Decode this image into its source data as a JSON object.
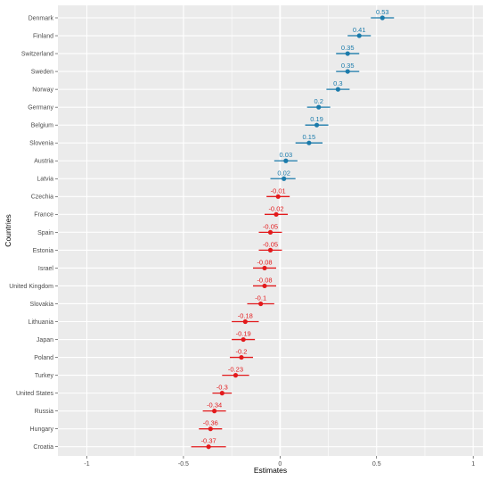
{
  "chart_data": {
    "type": "scatter",
    "xlabel": "Estimates",
    "ylabel": "Countries",
    "xlim": [
      -1.15,
      1.05
    ],
    "x_ticks": [
      -1,
      -0.5,
      0,
      0.5,
      1
    ],
    "x_tick_labels": [
      "-1",
      "-0.5",
      "0",
      "0.5",
      "1"
    ],
    "reference_line_x": 0,
    "grid": true,
    "legend": "none",
    "colors": {
      "positive": "#1b7bab",
      "negative": "#e31a1c",
      "panel": "#ebebeb",
      "grid": "#ffffff"
    },
    "points": [
      {
        "country": "Denmark",
        "estimate": 0.53,
        "label": "0.53",
        "ci": [
          0.47,
          0.59
        ]
      },
      {
        "country": "Finland",
        "estimate": 0.41,
        "label": "0.41",
        "ci": [
          0.35,
          0.47
        ]
      },
      {
        "country": "Switzerland",
        "estimate": 0.35,
        "label": "0.35",
        "ci": [
          0.29,
          0.41
        ]
      },
      {
        "country": "Sweden",
        "estimate": 0.35,
        "label": "0.35",
        "ci": [
          0.29,
          0.41
        ]
      },
      {
        "country": "Norway",
        "estimate": 0.3,
        "label": "0.3",
        "ci": [
          0.24,
          0.36
        ]
      },
      {
        "country": "Germany",
        "estimate": 0.2,
        "label": "0.2",
        "ci": [
          0.14,
          0.26
        ]
      },
      {
        "country": "Belgium",
        "estimate": 0.19,
        "label": "0.19",
        "ci": [
          0.13,
          0.25
        ]
      },
      {
        "country": "Slovenia",
        "estimate": 0.15,
        "label": "0.15",
        "ci": [
          0.08,
          0.22
        ]
      },
      {
        "country": "Austria",
        "estimate": 0.03,
        "label": "0.03",
        "ci": [
          -0.03,
          0.09
        ]
      },
      {
        "country": "Latvia",
        "estimate": 0.02,
        "label": "0.02",
        "ci": [
          -0.05,
          0.08
        ]
      },
      {
        "country": "Czechia",
        "estimate": -0.01,
        "label": "-0.01",
        "ci": [
          -0.07,
          0.05
        ]
      },
      {
        "country": "France",
        "estimate": -0.02,
        "label": "-0.02",
        "ci": [
          -0.08,
          0.04
        ]
      },
      {
        "country": "Spain",
        "estimate": -0.05,
        "label": "-0.05",
        "ci": [
          -0.11,
          0.01
        ]
      },
      {
        "country": "Estonia",
        "estimate": -0.05,
        "label": "-0.05",
        "ci": [
          -0.11,
          0.01
        ]
      },
      {
        "country": "Israel",
        "estimate": -0.08,
        "label": "-0.08",
        "ci": [
          -0.14,
          -0.02
        ]
      },
      {
        "country": "United Kingdom",
        "estimate": -0.08,
        "label": "-0.08",
        "ci": [
          -0.14,
          -0.02
        ]
      },
      {
        "country": "Slovakia",
        "estimate": -0.1,
        "label": "-0.1",
        "ci": [
          -0.17,
          -0.03
        ]
      },
      {
        "country": "Lithuania",
        "estimate": -0.18,
        "label": "-0.18",
        "ci": [
          -0.25,
          -0.11
        ]
      },
      {
        "country": "Japan",
        "estimate": -0.19,
        "label": "-0.19",
        "ci": [
          -0.25,
          -0.13
        ]
      },
      {
        "country": "Poland",
        "estimate": -0.2,
        "label": "-0.2",
        "ci": [
          -0.26,
          -0.14
        ]
      },
      {
        "country": "Turkey",
        "estimate": -0.23,
        "label": "-0.23",
        "ci": [
          -0.3,
          -0.16
        ]
      },
      {
        "country": "United States",
        "estimate": -0.3,
        "label": "-0.3",
        "ci": [
          -0.35,
          -0.25
        ]
      },
      {
        "country": "Russia",
        "estimate": -0.34,
        "label": "-0.34",
        "ci": [
          -0.4,
          -0.28
        ]
      },
      {
        "country": "Hungary",
        "estimate": -0.36,
        "label": "-0.36",
        "ci": [
          -0.42,
          -0.3
        ]
      },
      {
        "country": "Croatia",
        "estimate": -0.37,
        "label": "-0.37",
        "ci": [
          -0.46,
          -0.28
        ]
      }
    ]
  }
}
